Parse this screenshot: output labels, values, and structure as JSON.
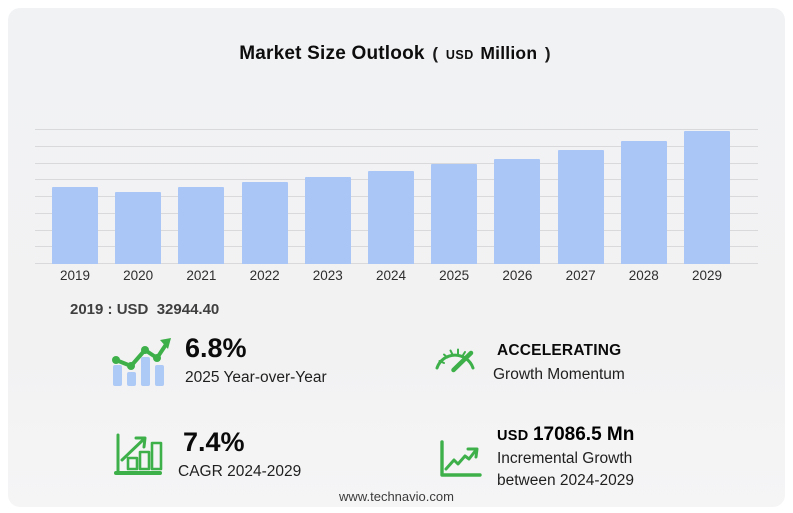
{
  "title": {
    "main": "Market Size Outlook",
    "open_paren": "(",
    "currency": "USD",
    "unit": "Million",
    "close_paren": ")"
  },
  "chart_data": {
    "type": "bar",
    "title": "Market Size Outlook (USD Million)",
    "categories": [
      "2019",
      "2020",
      "2021",
      "2022",
      "2023",
      "2024",
      "2025",
      "2026",
      "2027",
      "2028",
      "2029"
    ],
    "values": [
      32944.4,
      30940,
      32870,
      34950,
      37080,
      39856.4,
      42566.6,
      45050,
      48770,
      52490,
      56942.9
    ],
    "xlabel": "",
    "ylabel": "",
    "ylim": [
      0,
      60000
    ],
    "grid": true,
    "legend": "none",
    "bar_color": "#a9c6f6"
  },
  "summary": {
    "text": "2019 : USD  32944.40"
  },
  "stats": [
    {
      "icon": "bar-chart-trend-up-icon",
      "value": "6.8%",
      "label": "2025 Year-over-Year"
    },
    {
      "icon": "bar-growth-arrow-icon",
      "value": "7.4%",
      "label": "CAGR 2024-2029"
    },
    {
      "icon": "speedometer-icon",
      "value": "ACCELERATING",
      "label": "Growth Momentum"
    },
    {
      "icon": "line-chart-arrow-icon",
      "value_prefix": "USD",
      "value": "17086.5 Mn",
      "label": "Incremental Growth",
      "label_line2": "between 2024-2029"
    }
  ],
  "footer": {
    "website": "www.technavio.com"
  },
  "colors": {
    "bar": "#a9c6f6",
    "gridline": "#d9d9db",
    "accent_green": "#3eb04a",
    "card_bg": "#f1f2f4",
    "page_bg": "#ffffff",
    "text_dark": "#0d0d0d",
    "text_gray": "#3f3f3f"
  }
}
